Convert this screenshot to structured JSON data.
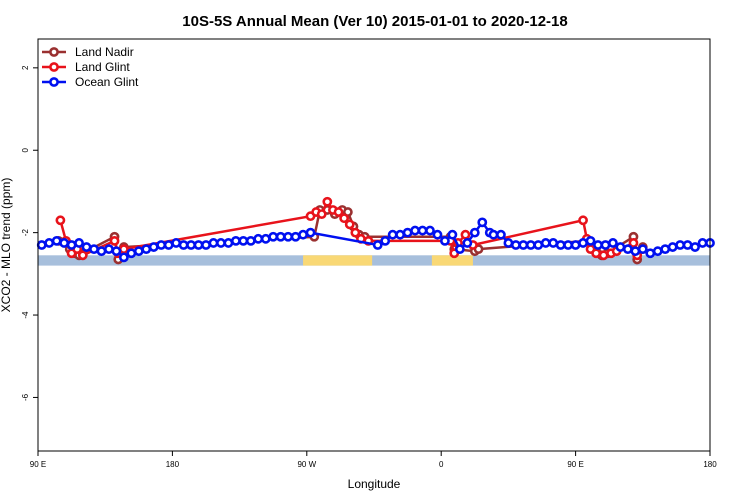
{
  "chart_data": {
    "type": "line",
    "title": "10S-5S Annual Mean (Ver 10)   2015-01-01 to 2020-12-18",
    "xlabel": "Longitude",
    "ylabel": "XCO2 - MLO trend (ppm)",
    "xlim": [
      90,
      450
    ],
    "ylim": [
      -7.3,
      2.7
    ],
    "x_ticks": [
      {
        "value": 90,
        "label": "90 E"
      },
      {
        "value": 162,
        "label": "180"
      },
      {
        "value": 234,
        "label": "90 W"
      },
      {
        "value": 306,
        "label": "0"
      },
      {
        "value": 378,
        "label": "90 E"
      },
      {
        "value": 450,
        "label": "180"
      }
    ],
    "y_ticks": [
      {
        "value": 2,
        "label": "2"
      },
      {
        "value": 0,
        "label": "0"
      },
      {
        "value": -2,
        "label": "-2"
      },
      {
        "value": -4,
        "label": "-4"
      },
      {
        "value": -6,
        "label": "-6"
      }
    ],
    "grid": false,
    "legend_position": "top-left",
    "land_band": {
      "y": [
        -2.55,
        -2.8
      ],
      "ocean_color": "#a7bfdc",
      "land_color": "#f9d875",
      "land_spans": [
        [
          232,
          269
        ],
        [
          301,
          323
        ]
      ]
    },
    "series": [
      {
        "name": "Land Nadir",
        "color": "#9a3030",
        "x": [
          101,
          105,
          107,
          110,
          112,
          114,
          131,
          133,
          136,
          238,
          241,
          245,
          249,
          253,
          256,
          259,
          262,
          265,
          311,
          313,
          324,
          326,
          384,
          389,
          392,
          395,
          409,
          411,
          414
        ],
        "y": [
          -2.2,
          -2.25,
          -2.4,
          -2.5,
          -2.55,
          -2.5,
          -2.1,
          -2.65,
          -2.35,
          -2.1,
          -1.45,
          -1.45,
          -1.55,
          -1.45,
          -1.5,
          -1.85,
          -2.05,
          -2.1,
          -2.1,
          -2.4,
          -2.45,
          -2.4,
          -2.2,
          -2.45,
          -2.55,
          -2.5,
          -2.1,
          -2.65,
          -2.35
        ]
      },
      {
        "name": "Land Glint",
        "color": "#e8131b",
        "x": [
          102,
          105,
          108,
          111,
          114,
          131,
          133,
          136,
          236,
          239,
          242,
          245,
          248,
          251,
          254,
          257,
          260,
          263,
          267,
          311,
          313,
          315,
          319,
          323,
          382,
          384,
          386,
          389,
          393,
          397,
          400,
          409,
          411,
          414
        ],
        "y": [
          -1.7,
          -2.2,
          -2.5,
          -2.4,
          -2.55,
          -2.2,
          -2.5,
          -2.4,
          -1.6,
          -1.5,
          -1.55,
          -1.25,
          -1.45,
          -1.5,
          -1.65,
          -1.8,
          -2.0,
          -2.15,
          -2.2,
          -2.2,
          -2.5,
          -2.25,
          -2.05,
          -2.3,
          -1.7,
          -2.15,
          -2.4,
          -2.5,
          -2.55,
          -2.5,
          -2.45,
          -2.25,
          -2.55,
          -2.4
        ]
      },
      {
        "name": "Ocean Glint",
        "color": "#0010f0",
        "x": [
          92,
          96,
          100,
          104,
          108,
          112,
          116,
          120,
          124,
          128,
          132,
          136,
          140,
          144,
          148,
          152,
          156,
          160,
          164,
          168,
          172,
          176,
          180,
          184,
          188,
          192,
          196,
          200,
          204,
          208,
          212,
          216,
          220,
          224,
          228,
          232,
          236,
          272,
          276,
          280,
          284,
          288,
          292,
          296,
          300,
          304,
          308,
          312,
          316,
          320,
          324,
          328,
          332,
          334,
          338,
          342,
          346,
          350,
          354,
          358,
          362,
          366,
          370,
          374,
          378,
          382,
          386,
          390,
          394,
          398,
          402,
          406,
          410,
          414,
          418,
          422,
          426,
          430,
          434,
          438,
          442,
          446,
          450
        ],
        "y": [
          -2.3,
          -2.25,
          -2.2,
          -2.25,
          -2.3,
          -2.25,
          -2.35,
          -2.4,
          -2.45,
          -2.4,
          -2.45,
          -2.6,
          -2.5,
          -2.45,
          -2.4,
          -2.35,
          -2.3,
          -2.3,
          -2.25,
          -2.3,
          -2.3,
          -2.3,
          -2.3,
          -2.25,
          -2.25,
          -2.25,
          -2.2,
          -2.2,
          -2.2,
          -2.15,
          -2.15,
          -2.1,
          -2.1,
          -2.1,
          -2.1,
          -2.05,
          -2.0,
          -2.3,
          -2.2,
          -2.05,
          -2.05,
          -2.0,
          -1.95,
          -1.95,
          -1.95,
          -2.05,
          -2.2,
          -2.05,
          -2.4,
          -2.25,
          -2.0,
          -1.75,
          -2.0,
          -2.05,
          -2.05,
          -2.25,
          -2.3,
          -2.3,
          -2.3,
          -2.3,
          -2.25,
          -2.25,
          -2.3,
          -2.3,
          -2.3,
          -2.25,
          -2.2,
          -2.3,
          -2.3,
          -2.25,
          -2.35,
          -2.4,
          -2.45,
          -2.4,
          -2.5,
          -2.45,
          -2.4,
          -2.35,
          -2.3,
          -2.3,
          -2.35,
          -2.25,
          -2.25
        ]
      }
    ]
  }
}
